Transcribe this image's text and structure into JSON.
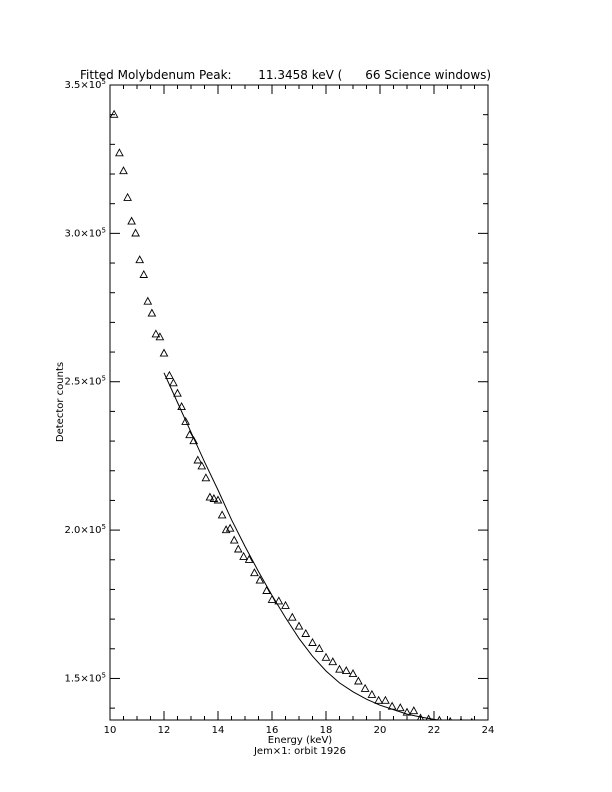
{
  "chart_data": {
    "type": "scatter",
    "title": "Fitted Molybdenum Peak:       11.3458 keV (      66 Science windows)",
    "xlabel": "Energy (keV)",
    "ylabel": "Detector counts",
    "footer": "Jem×1: orbit 1926",
    "xlim": [
      10,
      24
    ],
    "ylim": [
      136000,
      350000
    ],
    "x_ticks": [
      10,
      12,
      14,
      16,
      18,
      20,
      22,
      24
    ],
    "x_tick_labels": [
      "10",
      "12",
      "14",
      "16",
      "18",
      "20",
      "22",
      "24"
    ],
    "y_ticks": [
      150000,
      200000,
      250000,
      300000,
      350000
    ],
    "y_tick_labels": [
      {
        "mantissa": "1.5×10",
        "exp": "5"
      },
      {
        "mantissa": "2.0×10",
        "exp": "5"
      },
      {
        "mantissa": "2.5×10",
        "exp": "5"
      },
      {
        "mantissa": "3.0×10",
        "exp": "5"
      },
      {
        "mantissa": "3.5×10",
        "exp": "5"
      }
    ],
    "grid": false,
    "series": [
      {
        "marker": "triangle",
        "points": [
          [
            10.15,
            340000
          ],
          [
            10.35,
            327000
          ],
          [
            10.5,
            321000
          ],
          [
            10.65,
            312000
          ],
          [
            10.8,
            304000
          ],
          [
            10.95,
            300000
          ],
          [
            11.1,
            291000
          ],
          [
            11.25,
            286000
          ],
          [
            11.4,
            277000
          ],
          [
            11.55,
            273000
          ],
          [
            11.7,
            266000
          ],
          [
            11.85,
            265000
          ],
          [
            12.0,
            259500
          ],
          [
            12.2,
            252000
          ],
          [
            12.35,
            249500
          ],
          [
            12.5,
            246000
          ],
          [
            12.65,
            241500
          ],
          [
            12.8,
            236500
          ],
          [
            12.95,
            232000
          ],
          [
            13.1,
            230000
          ],
          [
            13.25,
            223500
          ],
          [
            13.4,
            221500
          ],
          [
            13.55,
            217500
          ],
          [
            13.7,
            211000
          ],
          [
            13.85,
            210500
          ],
          [
            14.0,
            210000
          ],
          [
            14.15,
            205000
          ],
          [
            14.3,
            200000
          ],
          [
            14.45,
            200500
          ],
          [
            14.6,
            196500
          ],
          [
            14.75,
            193500
          ],
          [
            14.95,
            191000
          ],
          [
            15.15,
            190000
          ],
          [
            15.35,
            185500
          ],
          [
            15.55,
            183000
          ],
          [
            15.8,
            179500
          ],
          [
            16.0,
            176500
          ],
          [
            16.25,
            176000
          ],
          [
            16.5,
            174500
          ],
          [
            16.75,
            170500
          ],
          [
            17.0,
            167500
          ],
          [
            17.25,
            165000
          ],
          [
            17.5,
            162000
          ],
          [
            17.75,
            160000
          ],
          [
            18.0,
            157000
          ],
          [
            18.25,
            155500
          ],
          [
            18.5,
            153000
          ],
          [
            18.75,
            152500
          ],
          [
            19.0,
            151500
          ],
          [
            19.2,
            149000
          ],
          [
            19.45,
            146500
          ],
          [
            19.7,
            144500
          ],
          [
            19.95,
            142500
          ],
          [
            20.2,
            142500
          ],
          [
            20.45,
            140500
          ],
          [
            20.75,
            140000
          ],
          [
            21.0,
            138500
          ],
          [
            21.25,
            139000
          ],
          [
            21.5,
            136500
          ],
          [
            21.8,
            136200
          ],
          [
            22.2,
            135800
          ],
          [
            22.6,
            135400
          ],
          [
            23.0,
            135200
          ],
          [
            23.4,
            135100
          ]
        ]
      },
      {
        "marker": "line",
        "points": [
          [
            12.0,
            253000
          ],
          [
            12.5,
            243000
          ],
          [
            13.0,
            233000
          ],
          [
            13.5,
            223000
          ],
          [
            14.0,
            213500
          ],
          [
            14.5,
            203500
          ],
          [
            15.0,
            194500
          ],
          [
            15.5,
            186000
          ],
          [
            16.0,
            178000
          ],
          [
            16.5,
            170500
          ],
          [
            17.0,
            163500
          ],
          [
            17.5,
            157500
          ],
          [
            18.0,
            152500
          ],
          [
            18.5,
            148500
          ],
          [
            19.0,
            145500
          ],
          [
            19.5,
            143000
          ],
          [
            20.0,
            141000
          ],
          [
            20.5,
            139500
          ],
          [
            21.0,
            138000
          ],
          [
            21.5,
            137000
          ],
          [
            22.0,
            136200
          ],
          [
            22.5,
            135600
          ],
          [
            23.0,
            135100
          ],
          [
            23.5,
            134700
          ],
          [
            24.0,
            134400
          ]
        ]
      }
    ]
  }
}
